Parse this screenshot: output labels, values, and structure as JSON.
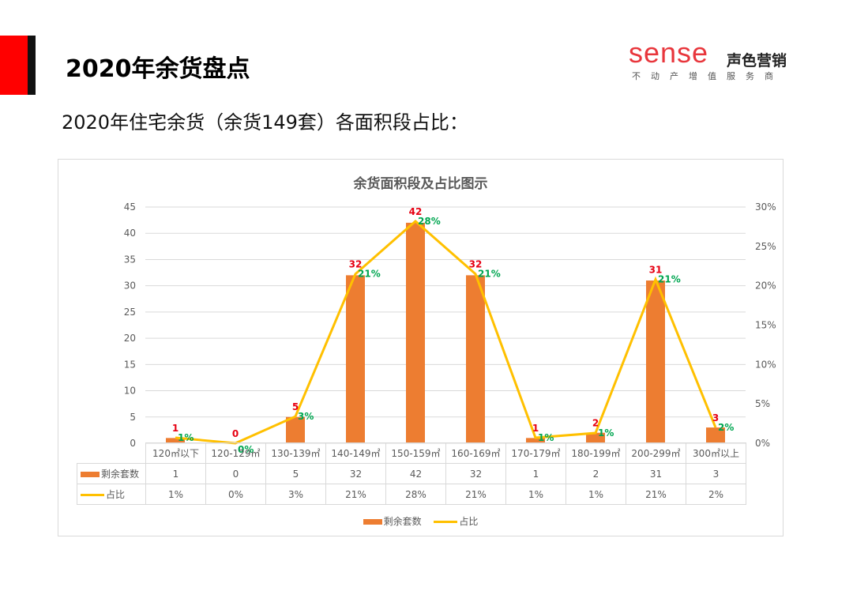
{
  "header": {
    "title": "2020年余货盘点",
    "subtitle": "2020年住宅余货（余货149套）各面积段占比：",
    "accent_colors": [
      "#ff0000",
      "#111111"
    ]
  },
  "logo": {
    "brand": "sense",
    "brand_cn": "声色营销",
    "tagline": "不动产增值服务商",
    "brand_color": "#e8363c"
  },
  "legend": {
    "bar_label": "剩余套数",
    "line_label": "占比"
  },
  "table": {
    "row_labels": [
      "剩余套数",
      "占比"
    ],
    "counts": [
      "1",
      "0",
      "5",
      "32",
      "42",
      "32",
      "1",
      "2",
      "31",
      "3"
    ],
    "shares": [
      "1%",
      "0%",
      "3%",
      "21%",
      "28%",
      "21%",
      "1%",
      "1%",
      "21%",
      "2%"
    ]
  },
  "chart_data": {
    "type": "bar",
    "title": "余货面积段及占比图示",
    "xlabel": "",
    "ylabel": "",
    "categories": [
      "120㎡以下",
      "120-129㎡",
      "130-139㎡",
      "140-149㎡",
      "150-159㎡",
      "160-169㎡",
      "170-179㎡",
      "180-199㎡",
      "200-299㎡",
      "300㎡以上"
    ],
    "series": [
      {
        "name": "剩余套数",
        "type": "bar",
        "axis": "left",
        "color": "#ed7d31",
        "values": [
          1,
          0,
          5,
          32,
          42,
          32,
          1,
          2,
          31,
          3
        ]
      },
      {
        "name": "占比",
        "type": "line",
        "axis": "right",
        "color": "#ffc000",
        "values": [
          0.7,
          0.0,
          3.4,
          21.5,
          28.2,
          21.5,
          0.7,
          1.3,
          20.8,
          2.0
        ],
        "labels": [
          "1%",
          "0%",
          "3%",
          "21%",
          "28%",
          "21%",
          "1%",
          "1%",
          "21%",
          "2%"
        ]
      }
    ],
    "ylim": [
      0,
      45
    ],
    "y_ticks": [
      "0",
      "5",
      "10",
      "15",
      "20",
      "25",
      "30",
      "35",
      "40",
      "45"
    ],
    "y2lim": [
      0,
      30
    ],
    "y2_ticks": [
      "0%",
      "5%",
      "10%",
      "15%",
      "20%",
      "25%",
      "30%"
    ],
    "grid": true,
    "legend_position": "bottom",
    "data_table": true,
    "label_colors": {
      "count": "#e60012",
      "share": "#00a651"
    }
  }
}
